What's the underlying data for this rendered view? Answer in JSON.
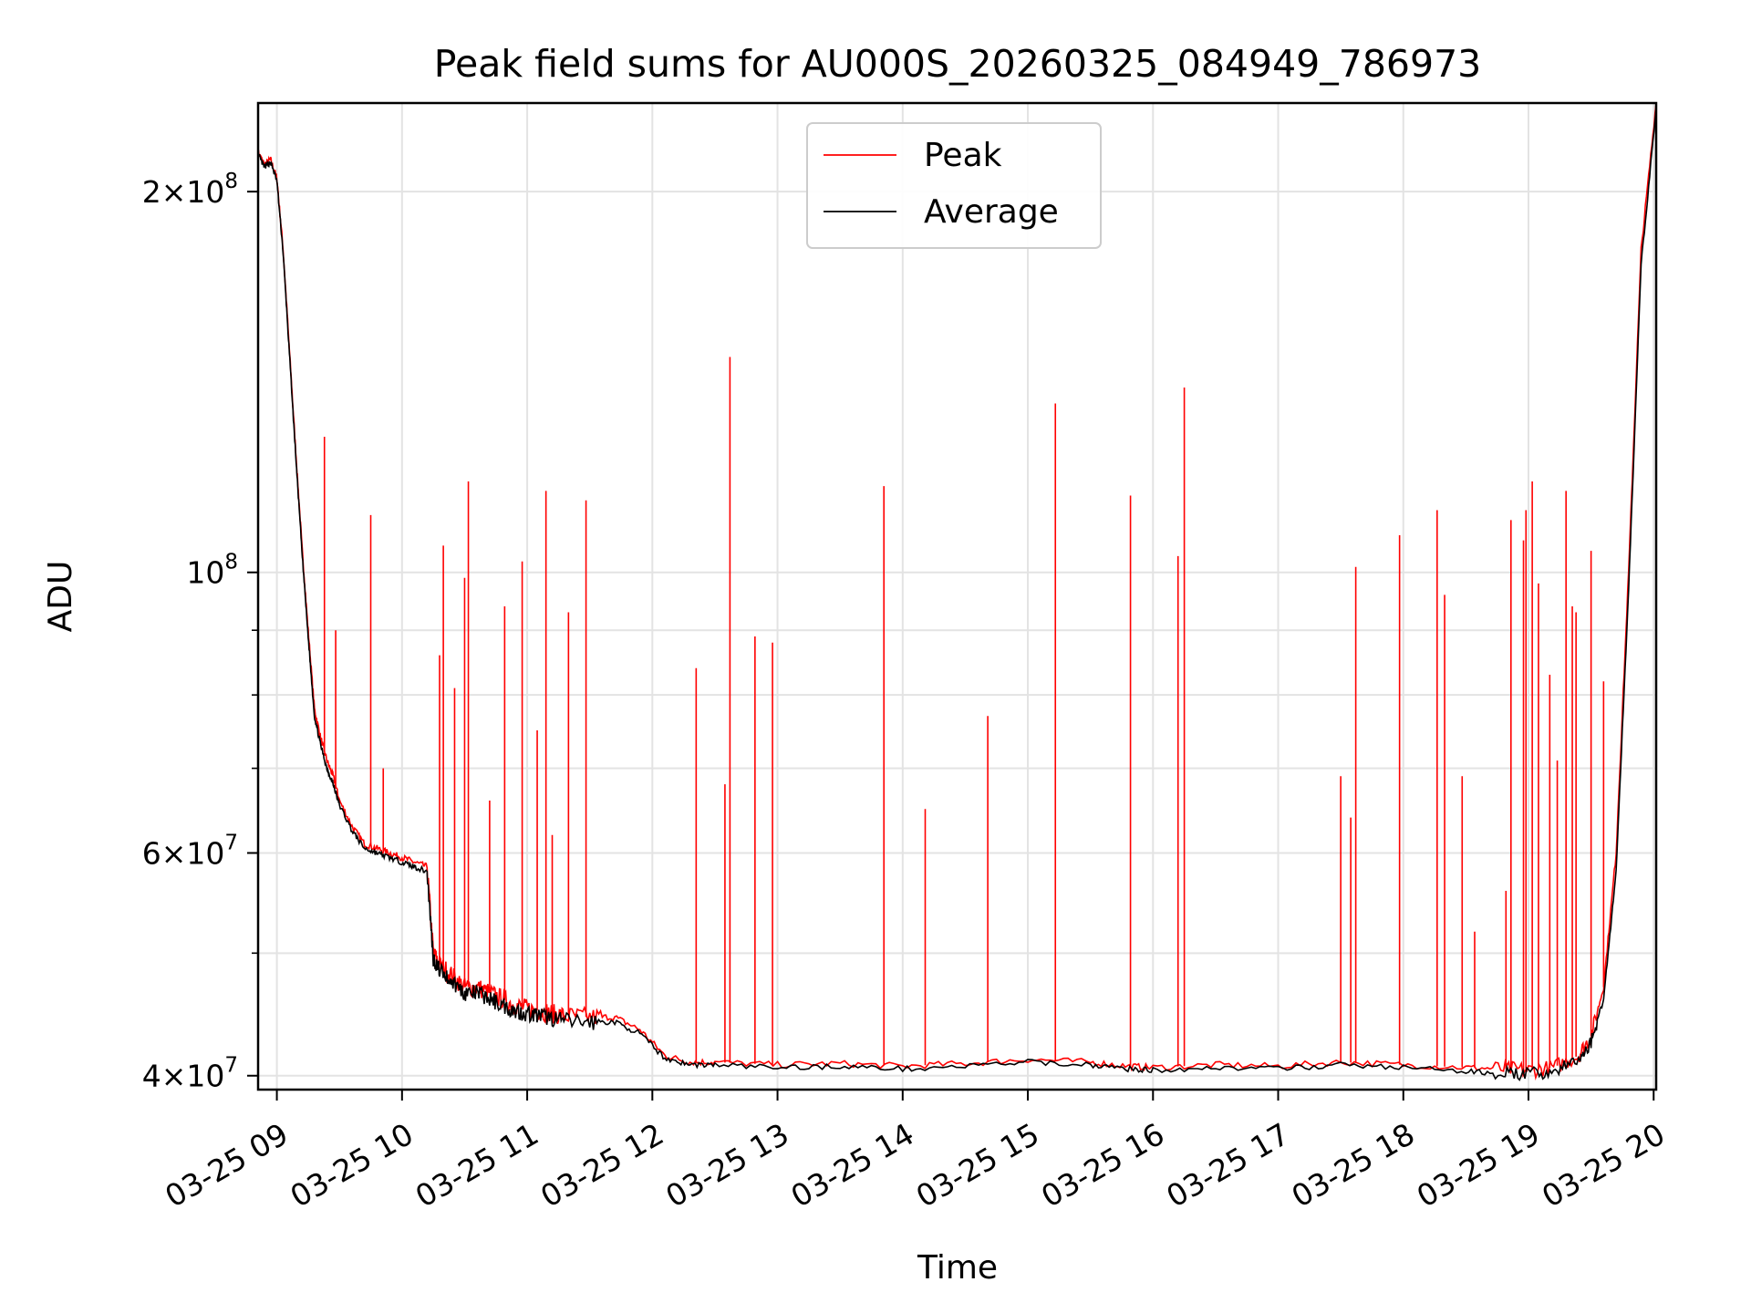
{
  "chart_data": {
    "type": "line",
    "title": "Peak field sums for AU000S_20260325_084949_786973",
    "xlabel": "Time",
    "ylabel": "ADU",
    "yscale": "log",
    "xlim": [
      8.85,
      20.02
    ],
    "ylim": [
      39000000,
      235000000
    ],
    "grid": true,
    "legend_position": "upper center",
    "x_ticks": [
      {
        "value": 9,
        "label": "03-25 09"
      },
      {
        "value": 10,
        "label": "03-25 10"
      },
      {
        "value": 11,
        "label": "03-25 11"
      },
      {
        "value": 12,
        "label": "03-25 12"
      },
      {
        "value": 13,
        "label": "03-25 13"
      },
      {
        "value": 14,
        "label": "03-25 14"
      },
      {
        "value": 15,
        "label": "03-25 15"
      },
      {
        "value": 16,
        "label": "03-25 16"
      },
      {
        "value": 17,
        "label": "03-25 17"
      },
      {
        "value": 18,
        "label": "03-25 18"
      },
      {
        "value": 19,
        "label": "03-25 19"
      },
      {
        "value": 20,
        "label": "03-25 20"
      }
    ],
    "y_ticks_major": [
      {
        "value": 40000000,
        "base": "4",
        "exp": "7"
      },
      {
        "value": 60000000,
        "base": "6",
        "exp": "7"
      },
      {
        "value": 100000000,
        "base": "",
        "exp": "8"
      },
      {
        "value": 200000000,
        "base": "2",
        "exp": "8"
      }
    ],
    "y_ticks_minor": [
      50000000,
      70000000,
      80000000,
      90000000,
      300000000
    ],
    "series": [
      {
        "name": "Peak",
        "color": "#ff0000",
        "x": [
          8.85,
          8.9,
          8.95,
          9.0,
          9.05,
          9.1,
          9.15,
          9.2,
          9.25,
          9.3,
          9.35,
          9.4,
          9.45,
          9.5,
          9.6,
          9.7,
          9.8,
          9.9,
          10.0,
          10.1,
          10.2,
          10.25,
          10.3,
          10.4,
          10.5,
          10.6,
          10.7,
          10.8,
          10.9,
          11.0,
          11.1,
          11.2,
          11.3,
          11.5,
          11.7,
          11.9,
          12.1,
          12.3,
          12.5,
          13.0,
          13.5,
          14.0,
          14.5,
          15.0,
          15.5,
          15.8,
          16.0,
          16.5,
          17.0,
          17.5,
          18.0,
          18.5,
          18.8,
          19.0,
          19.2,
          19.4,
          19.5,
          19.6,
          19.7,
          19.8,
          19.9,
          20.02
        ],
        "y": [
          215000000,
          210000000,
          212000000,
          205000000,
          180000000,
          150000000,
          125000000,
          105000000,
          90000000,
          78000000,
          74000000,
          71000000,
          69000000,
          66000000,
          63000000,
          61000000,
          60500000,
          60000000,
          59500000,
          59000000,
          58500000,
          50000000,
          49000000,
          48000000,
          47000000,
          47000000,
          46500000,
          46000000,
          45500000,
          45200000,
          45000000,
          44800000,
          44600000,
          44500000,
          44500000,
          43500000,
          41500000,
          41000000,
          41000000,
          40800000,
          40900000,
          40700000,
          40900000,
          41200000,
          41000000,
          40700000,
          40600000,
          40800000,
          40700000,
          41000000,
          40800000,
          40600000,
          40500000,
          40400000,
          40600000,
          41500000,
          43000000,
          47000000,
          60000000,
          100000000,
          180000000,
          235000000
        ],
        "spikes": [
          {
            "x": 9.38,
            "y": 128000000
          },
          {
            "x": 9.47,
            "y": 90000000
          },
          {
            "x": 9.75,
            "y": 111000000
          },
          {
            "x": 9.85,
            "y": 70000000
          },
          {
            "x": 10.3,
            "y": 86000000
          },
          {
            "x": 10.33,
            "y": 105000000
          },
          {
            "x": 10.42,
            "y": 81000000
          },
          {
            "x": 10.5,
            "y": 99000000
          },
          {
            "x": 10.53,
            "y": 118000000
          },
          {
            "x": 10.7,
            "y": 66000000
          },
          {
            "x": 10.82,
            "y": 94000000
          },
          {
            "x": 10.96,
            "y": 102000000
          },
          {
            "x": 11.08,
            "y": 75000000
          },
          {
            "x": 11.15,
            "y": 116000000
          },
          {
            "x": 11.2,
            "y": 62000000
          },
          {
            "x": 11.33,
            "y": 93000000
          },
          {
            "x": 11.47,
            "y": 114000000
          },
          {
            "x": 12.35,
            "y": 84000000
          },
          {
            "x": 12.58,
            "y": 68000000
          },
          {
            "x": 12.62,
            "y": 148000000
          },
          {
            "x": 12.82,
            "y": 89000000
          },
          {
            "x": 12.96,
            "y": 88000000
          },
          {
            "x": 13.85,
            "y": 117000000
          },
          {
            "x": 14.18,
            "y": 65000000
          },
          {
            "x": 14.68,
            "y": 77000000
          },
          {
            "x": 15.22,
            "y": 136000000
          },
          {
            "x": 15.82,
            "y": 115000000
          },
          {
            "x": 16.2,
            "y": 103000000
          },
          {
            "x": 16.25,
            "y": 140000000
          },
          {
            "x": 17.5,
            "y": 69000000
          },
          {
            "x": 17.58,
            "y": 64000000
          },
          {
            "x": 17.62,
            "y": 101000000
          },
          {
            "x": 17.97,
            "y": 107000000
          },
          {
            "x": 18.27,
            "y": 112000000
          },
          {
            "x": 18.33,
            "y": 96000000
          },
          {
            "x": 18.47,
            "y": 69000000
          },
          {
            "x": 18.57,
            "y": 52000000
          },
          {
            "x": 18.82,
            "y": 56000000
          },
          {
            "x": 18.86,
            "y": 110000000
          },
          {
            "x": 18.96,
            "y": 106000000
          },
          {
            "x": 18.98,
            "y": 112000000
          },
          {
            "x": 19.03,
            "y": 118000000
          },
          {
            "x": 19.08,
            "y": 98000000
          },
          {
            "x": 19.17,
            "y": 83000000
          },
          {
            "x": 19.23,
            "y": 71000000
          },
          {
            "x": 19.3,
            "y": 116000000
          },
          {
            "x": 19.35,
            "y": 94000000
          },
          {
            "x": 19.38,
            "y": 93000000
          },
          {
            "x": 19.5,
            "y": 104000000
          },
          {
            "x": 19.6,
            "y": 82000000
          }
        ]
      },
      {
        "name": "Average",
        "color": "#000000",
        "x": [
          8.85,
          8.9,
          8.95,
          9.0,
          9.05,
          9.1,
          9.15,
          9.2,
          9.25,
          9.3,
          9.35,
          9.4,
          9.45,
          9.5,
          9.6,
          9.7,
          9.8,
          9.9,
          10.0,
          10.1,
          10.2,
          10.25,
          10.3,
          10.4,
          10.5,
          10.6,
          10.7,
          10.8,
          10.9,
          11.0,
          11.1,
          11.2,
          11.3,
          11.5,
          11.7,
          11.9,
          12.1,
          12.3,
          12.5,
          13.0,
          13.5,
          14.0,
          14.5,
          15.0,
          15.5,
          15.8,
          16.0,
          16.5,
          17.0,
          17.5,
          18.0,
          18.5,
          18.8,
          19.0,
          19.2,
          19.4,
          19.5,
          19.6,
          19.7,
          19.8,
          19.9,
          20.02
        ],
        "y": [
          214000000,
          209000000,
          211000000,
          204000000,
          179000000,
          149000000,
          124000000,
          104000000,
          89000000,
          77000000,
          73000000,
          70000000,
          68000000,
          65500000,
          62500000,
          60500000,
          60000000,
          59500000,
          59000000,
          58500000,
          58000000,
          49500000,
          48500000,
          47500000,
          46500000,
          46500000,
          46000000,
          45500000,
          45000000,
          44800000,
          44600000,
          44400000,
          44200000,
          44100000,
          44100000,
          43200000,
          41300000,
          40800000,
          40800000,
          40600000,
          40700000,
          40500000,
          40700000,
          41000000,
          40800000,
          40500000,
          40400000,
          40600000,
          40500000,
          40800000,
          40600000,
          40300000,
          40200000,
          40100000,
          40300000,
          41100000,
          42500000,
          46000000,
          58000000,
          97000000,
          175000000,
          233000000
        ]
      }
    ]
  }
}
